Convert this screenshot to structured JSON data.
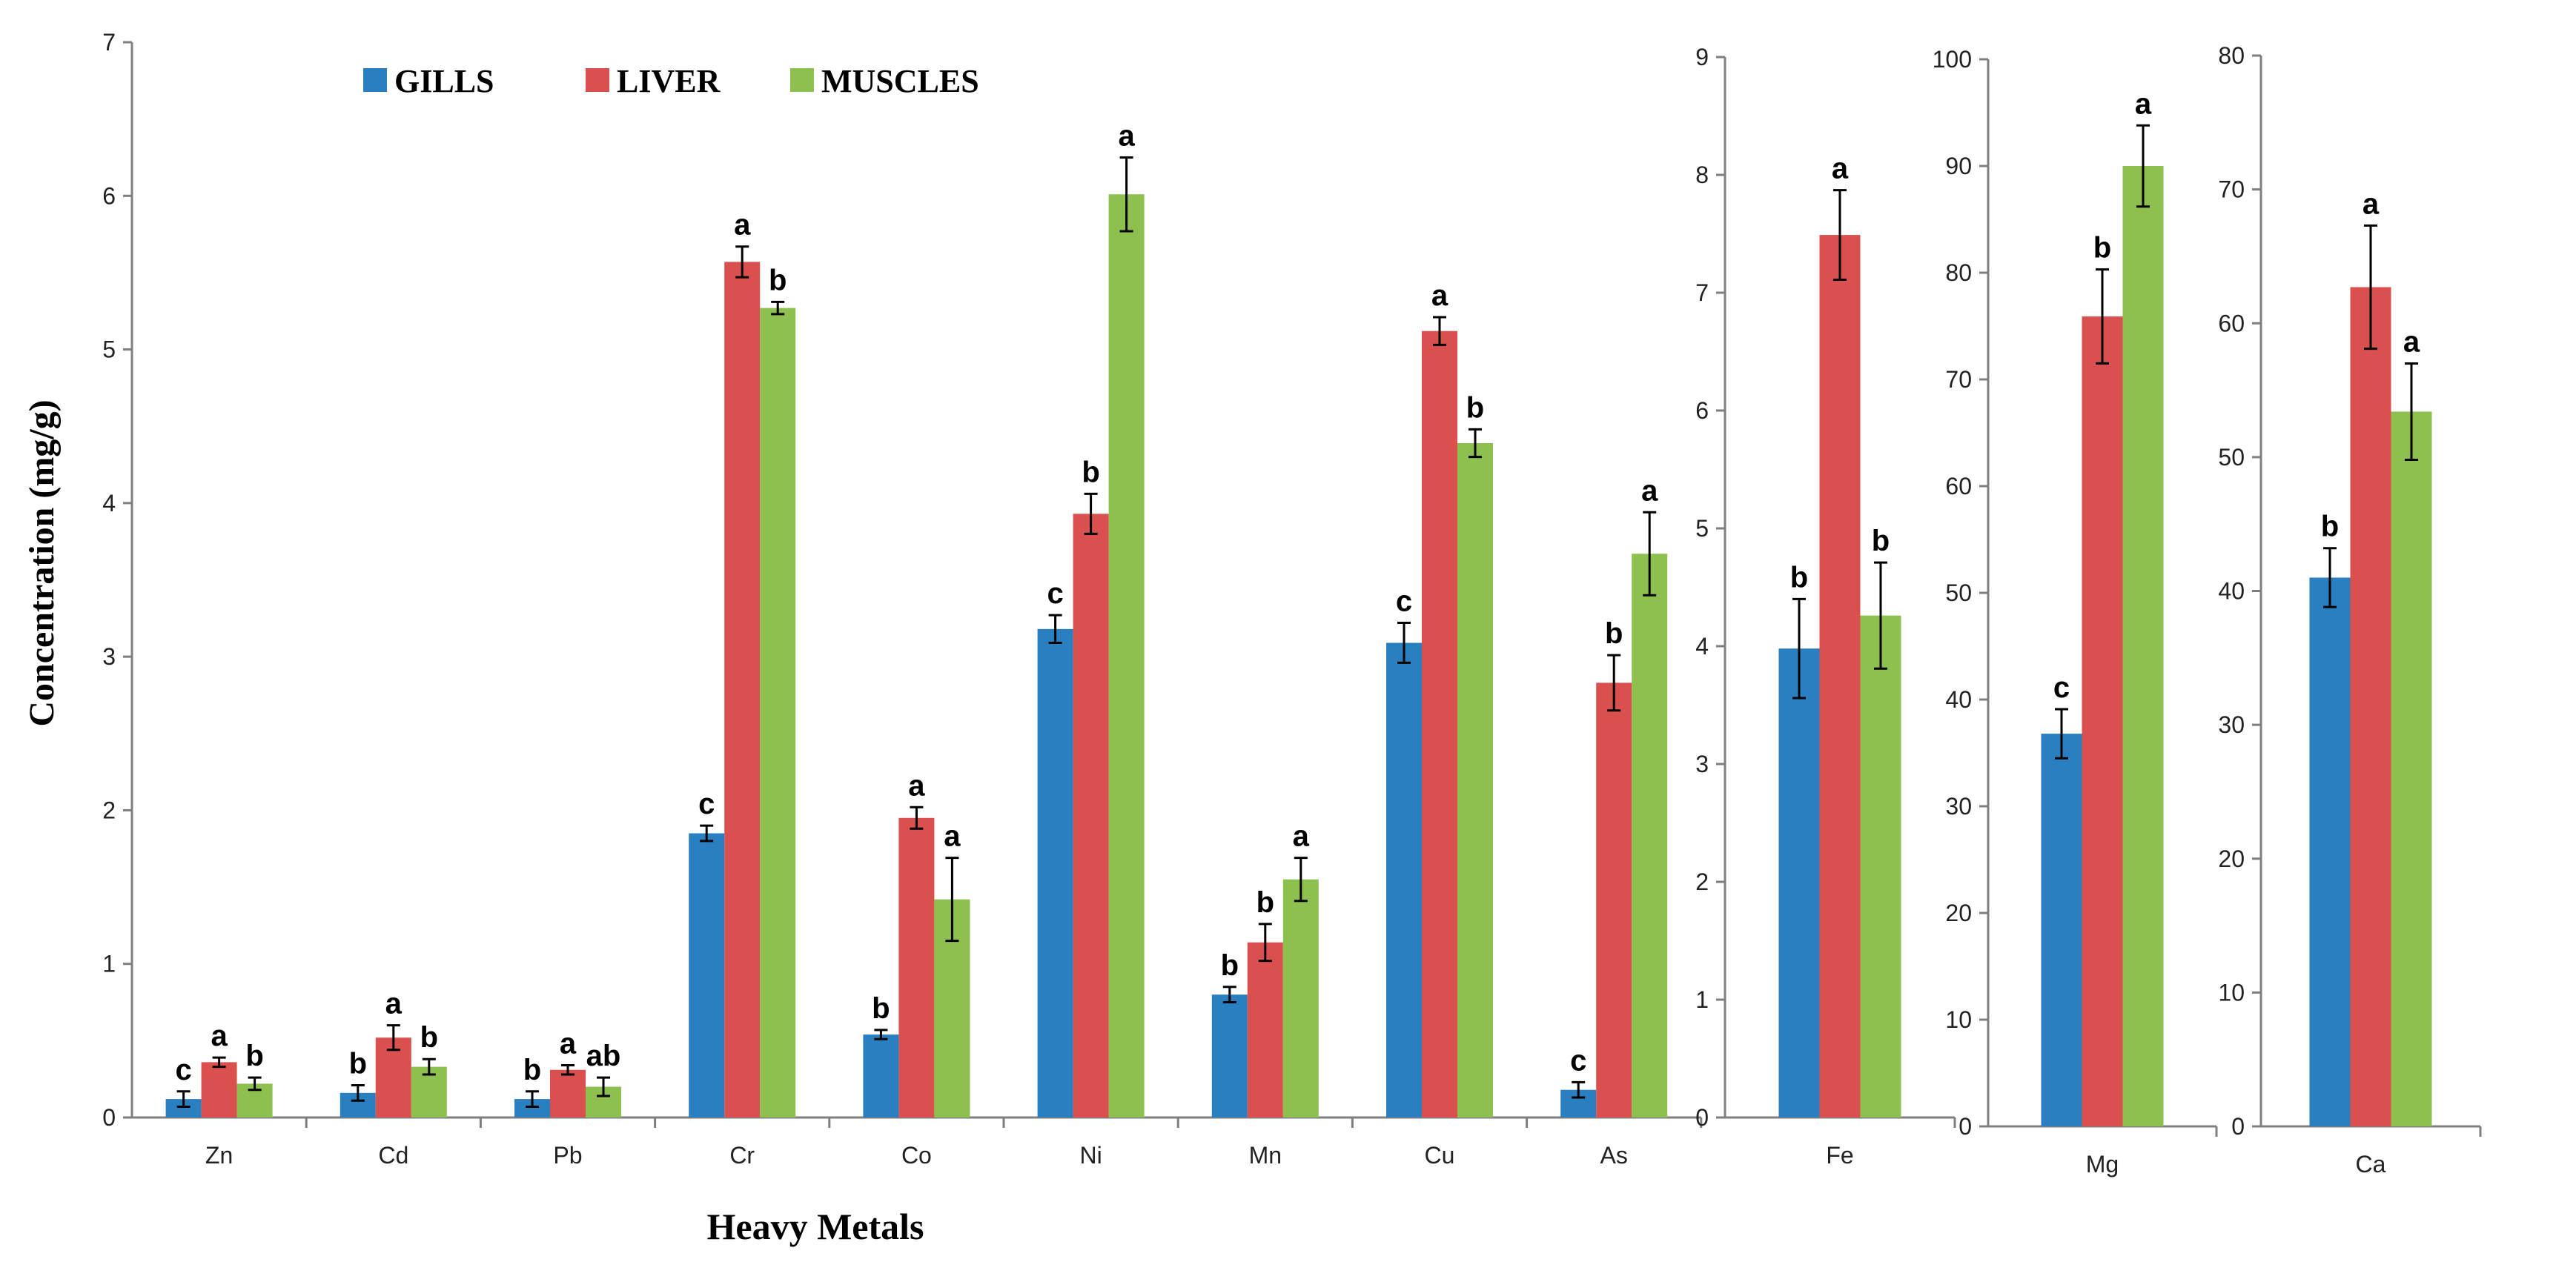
{
  "colors": {
    "gills": "#2a7fc0",
    "liver": "#d9504f",
    "muscles": "#8ec050"
  },
  "legend": [
    "GILLS",
    "LIVER",
    "MUSCLES"
  ],
  "chart_data": [
    {
      "type": "bar",
      "ylabel": "Concentration  (mg/g)",
      "xlabel": "Heavy Metals",
      "ylim": [
        0,
        7
      ],
      "yticks": [
        0,
        1,
        2,
        3,
        4,
        5,
        6,
        7
      ],
      "categories": [
        "Zn",
        "Cd",
        "Pb",
        "Cr",
        "Co",
        "Ni",
        "Mn",
        "Cu",
        "As"
      ],
      "series": [
        {
          "name": "GILLS",
          "values": [
            0.12,
            0.16,
            0.12,
            1.85,
            0.54,
            3.18,
            0.8,
            3.09,
            0.18
          ],
          "errors": [
            0.05,
            0.05,
            0.05,
            0.05,
            0.03,
            0.09,
            0.05,
            0.13,
            0.05
          ],
          "letters": [
            "c",
            "b",
            "b",
            "c",
            "b",
            "c",
            "b",
            "c",
            "c"
          ]
        },
        {
          "name": "LIVER",
          "values": [
            0.36,
            0.52,
            0.31,
            5.57,
            1.95,
            3.93,
            1.14,
            5.12,
            2.83
          ],
          "errors": [
            0.03,
            0.08,
            0.03,
            0.1,
            0.07,
            0.13,
            0.12,
            0.09,
            0.18
          ],
          "letters": [
            "a",
            "a",
            "a",
            "a",
            "a",
            "b",
            "b",
            "a",
            "b"
          ]
        },
        {
          "name": "MUSCLES",
          "values": [
            0.22,
            0.33,
            0.2,
            5.27,
            1.42,
            6.01,
            1.55,
            4.39,
            3.67
          ],
          "errors": [
            0.04,
            0.05,
            0.06,
            0.04,
            0.27,
            0.24,
            0.14,
            0.09,
            0.27
          ],
          "letters": [
            "b",
            "b",
            "ab",
            "b",
            "a",
            "a",
            "a",
            "b",
            "a"
          ]
        }
      ]
    },
    {
      "type": "bar",
      "ylim": [
        0,
        9
      ],
      "yticks": [
        0,
        1,
        2,
        3,
        4,
        5,
        6,
        7,
        8,
        9
      ],
      "categories": [
        "Fe"
      ],
      "series": [
        {
          "name": "GILLS",
          "values": [
            3.98
          ],
          "errors": [
            0.42
          ],
          "letters": [
            "b"
          ]
        },
        {
          "name": "LIVER",
          "values": [
            7.49
          ],
          "errors": [
            0.38
          ],
          "letters": [
            "a"
          ]
        },
        {
          "name": "MUSCLES",
          "values": [
            4.26
          ],
          "errors": [
            0.45
          ],
          "letters": [
            "b"
          ]
        }
      ]
    },
    {
      "type": "bar",
      "ylim": [
        0,
        100
      ],
      "yticks": [
        0,
        10,
        20,
        30,
        40,
        50,
        60,
        70,
        80,
        90,
        100
      ],
      "categories": [
        "Mg"
      ],
      "series": [
        {
          "name": "GILLS",
          "values": [
            36.8
          ],
          "errors": [
            2.3
          ],
          "letters": [
            "c"
          ]
        },
        {
          "name": "LIVER",
          "values": [
            75.9
          ],
          "errors": [
            4.4
          ],
          "letters": [
            "b"
          ]
        },
        {
          "name": "MUSCLES",
          "values": [
            90.0
          ],
          "errors": [
            3.8
          ],
          "letters": [
            "a"
          ]
        }
      ]
    },
    {
      "type": "bar",
      "ylim": [
        0,
        80
      ],
      "yticks": [
        0,
        10,
        20,
        30,
        40,
        50,
        60,
        70,
        80
      ],
      "categories": [
        "Ca"
      ],
      "series": [
        {
          "name": "GILLS",
          "values": [
            41.0
          ],
          "errors": [
            2.2
          ],
          "letters": [
            "b"
          ]
        },
        {
          "name": "LIVER",
          "values": [
            62.7
          ],
          "errors": [
            4.6
          ],
          "letters": [
            "a"
          ]
        },
        {
          "name": "MUSCLES",
          "values": [
            53.4
          ],
          "errors": [
            3.6
          ],
          "letters": [
            "a"
          ]
        }
      ]
    }
  ]
}
